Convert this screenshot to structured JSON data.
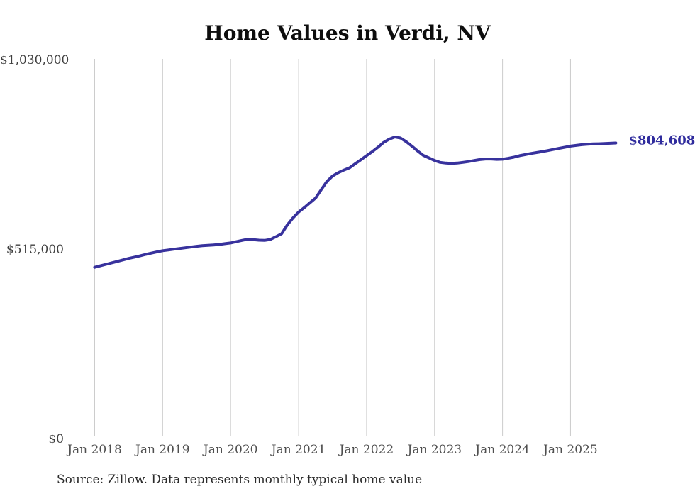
{
  "source_note": "Source: Zillow. Data represents monthly typical home value",
  "colors": {
    "line": "#38329d",
    "latest_value_label": "#2f2b9d",
    "gridline": "#cccccc",
    "y_tick_text": "#3f3f3f",
    "x_tick_text": "#4f4f4f",
    "title_text": "#0d0d0d",
    "source_text": "#2b2b2b",
    "background": "#ffffff"
  },
  "chart_data": {
    "type": "line",
    "title": "Home Values in Verdi, NV",
    "xlabel": "",
    "ylabel": "",
    "ylim": [
      0,
      1030000
    ],
    "grid": "vertical-only",
    "legend": "none",
    "y_ticks": [
      {
        "value": 0,
        "label": "$0"
      },
      {
        "value": 515000,
        "label": "$515,000"
      },
      {
        "value": 1030000,
        "label": "$1,030,000"
      }
    ],
    "x_ticks": [
      {
        "month_index": 0,
        "label": "Jan 2018"
      },
      {
        "month_index": 12,
        "label": "Jan 2019"
      },
      {
        "month_index": 24,
        "label": "Jan 2020"
      },
      {
        "month_index": 36,
        "label": "Jan 2021"
      },
      {
        "month_index": 48,
        "label": "Jan 2022"
      },
      {
        "month_index": 60,
        "label": "Jan 2023"
      },
      {
        "month_index": 72,
        "label": "Jan 2024"
      },
      {
        "month_index": 84,
        "label": "Jan 2025"
      }
    ],
    "latest_value": 804608,
    "latest_value_label": "$804,608",
    "series": [
      {
        "name": "Typical home value",
        "frequency": "monthly",
        "x_start": "2018-01",
        "x_end": "2025-09",
        "values": [
          467000,
          471000,
          475000,
          479000,
          483000,
          487000,
          491000,
          494500,
          498000,
          502000,
          505500,
          509000,
          512000,
          514000,
          516000,
          518000,
          520000,
          522000,
          524000,
          525500,
          526500,
          527500,
          529000,
          531000,
          533000,
          536500,
          540000,
          543000,
          542000,
          540500,
          540000,
          542500,
          550000,
          558000,
          582000,
          601000,
          617000,
          629000,
          642000,
          655000,
          678000,
          700000,
          715000,
          724000,
          731000,
          737000,
          748000,
          759000,
          770000,
          781000,
          793000,
          806000,
          815000,
          821000,
          818000,
          808000,
          796000,
          783000,
          771000,
          764000,
          757000,
          752000,
          750000,
          749000,
          750000,
          752000,
          754000,
          757000,
          759500,
          761000,
          761000,
          760000,
          760500,
          763000,
          766000,
          770000,
          773000,
          776000,
          778500,
          781000,
          784000,
          787000,
          790000,
          793000,
          796000,
          798000,
          800000,
          801000,
          802000,
          802500,
          803000,
          803800,
          804608
        ]
      }
    ]
  }
}
